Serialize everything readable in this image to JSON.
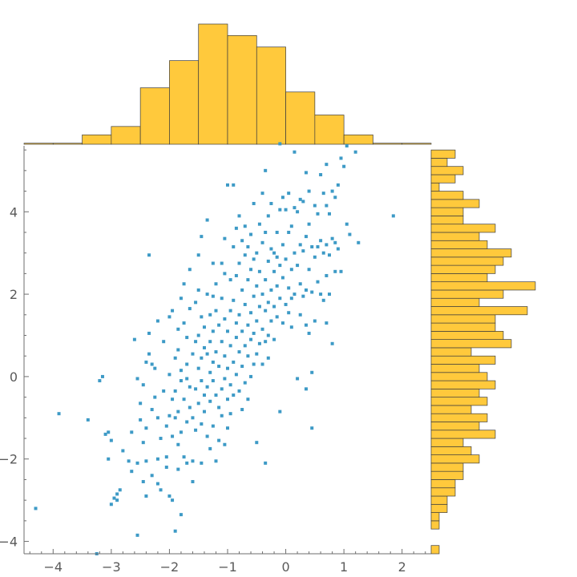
{
  "chart_data": {
    "type": "scatter",
    "title": "",
    "xlabel": "",
    "ylabel": "",
    "xlim": [
      -4.5,
      2.5
    ],
    "ylim": [
      -4.3,
      5.6
    ],
    "x_ticks": [
      -4,
      -3,
      -2,
      -1,
      0,
      1,
      2
    ],
    "y_ticks": [
      -4,
      -2,
      0,
      2,
      4
    ],
    "grid": false,
    "colors": {
      "points": "#3d9ac6",
      "histogram": "#ffc93c",
      "histogram_edge": "#3c3c3c",
      "axis": "#6e6e6e"
    },
    "points": [
      [
        -4.3,
        -3.2
      ],
      [
        -3.9,
        -0.9
      ],
      [
        -3.4,
        -1.05
      ],
      [
        -3.25,
        -4.3
      ],
      [
        -3.2,
        -0.1
      ],
      [
        -3.15,
        0.0
      ],
      [
        -3.1,
        -1.4
      ],
      [
        -3.05,
        -1.35
      ],
      [
        -3.05,
        -2.0
      ],
      [
        -3.0,
        -1.55
      ],
      [
        -3.0,
        -3.1
      ],
      [
        -2.95,
        -2.95
      ],
      [
        -2.9,
        -2.85
      ],
      [
        -2.9,
        -3.0
      ],
      [
        -2.85,
        -2.75
      ],
      [
        -2.8,
        -1.8
      ],
      [
        -2.7,
        -2.05
      ],
      [
        -2.65,
        -1.35
      ],
      [
        -2.65,
        -2.3
      ],
      [
        -2.6,
        0.9
      ],
      [
        -2.55,
        -0.05
      ],
      [
        -2.55,
        -3.85
      ],
      [
        -2.55,
        -2.1
      ],
      [
        -2.5,
        -1.05
      ],
      [
        -2.5,
        -0.65
      ],
      [
        -2.45,
        -0.2
      ],
      [
        -2.45,
        -1.6
      ],
      [
        -2.45,
        -2.55
      ],
      [
        -2.4,
        -2.05
      ],
      [
        -2.4,
        0.35
      ],
      [
        -2.4,
        -1.25
      ],
      [
        -2.4,
        -2.9
      ],
      [
        -2.35,
        0.55
      ],
      [
        -2.35,
        1.05
      ],
      [
        -2.35,
        2.95
      ],
      [
        -2.3,
        -0.8
      ],
      [
        -2.3,
        -2.4
      ],
      [
        -2.3,
        0.3
      ],
      [
        -2.25,
        0.2
      ],
      [
        -2.25,
        -0.5
      ],
      [
        -2.2,
        -1.0
      ],
      [
        -2.2,
        -2.0
      ],
      [
        -2.2,
        -2.6
      ],
      [
        -2.2,
        1.35
      ],
      [
        -2.15,
        -1.5
      ],
      [
        -2.15,
        -2.75
      ],
      [
        -2.1,
        0.85
      ],
      [
        -2.1,
        -0.35
      ],
      [
        -2.05,
        -1.2
      ],
      [
        -2.05,
        -2.2
      ],
      [
        -2.05,
        -1.95
      ],
      [
        -2.0,
        1.45
      ],
      [
        -2.0,
        0.05
      ],
      [
        -2.0,
        -0.95
      ],
      [
        -2.0,
        -2.9
      ],
      [
        -1.95,
        1.6
      ],
      [
        -1.95,
        -0.55
      ],
      [
        -1.95,
        -1.45
      ],
      [
        -1.95,
        -3.0
      ],
      [
        -1.9,
        0.45
      ],
      [
        -1.9,
        -0.35
      ],
      [
        -1.9,
        -1.0
      ],
      [
        -1.9,
        -3.75
      ],
      [
        -1.85,
        1.15
      ],
      [
        -1.85,
        0.65
      ],
      [
        -1.85,
        -0.85
      ],
      [
        -1.85,
        -1.65
      ],
      [
        -1.85,
        -2.25
      ],
      [
        -1.8,
        0.15
      ],
      [
        -1.8,
        1.9
      ],
      [
        -1.8,
        -0.1
      ],
      [
        -1.8,
        -1.35
      ],
      [
        -1.8,
        -3.35
      ],
      [
        -1.75,
        1.3
      ],
      [
        -1.75,
        2.25
      ],
      [
        -1.75,
        -0.55
      ],
      [
        -1.75,
        -1.95
      ],
      [
        -1.7,
        0.3
      ],
      [
        -1.7,
        0.95
      ],
      [
        -1.7,
        -0.05
      ],
      [
        -1.7,
        -1.1
      ],
      [
        -1.7,
        -2.1
      ],
      [
        -1.65,
        2.6
      ],
      [
        -1.65,
        1.65
      ],
      [
        -1.65,
        -0.25
      ],
      [
        -1.65,
        -0.75
      ],
      [
        -1.6,
        -1.0
      ],
      [
        -1.6,
        0.55
      ],
      [
        -1.6,
        -2.05
      ],
      [
        -1.6,
        -2.55
      ],
      [
        -1.55,
        1.8
      ],
      [
        -1.55,
        0.85
      ],
      [
        -1.55,
        -0.3
      ],
      [
        -1.55,
        -1.3
      ],
      [
        -1.5,
        2.95
      ],
      [
        -1.5,
        2.1
      ],
      [
        -1.5,
        0.2
      ],
      [
        -1.5,
        -0.65
      ],
      [
        -1.5,
        1.0
      ],
      [
        -1.45,
        3.4
      ],
      [
        -1.45,
        0.45
      ],
      [
        -1.45,
        1.45
      ],
      [
        -1.45,
        -0.1
      ],
      [
        -1.45,
        -1.15
      ],
      [
        -1.45,
        -2.1
      ],
      [
        -1.4,
        1.2
      ],
      [
        -1.4,
        0.7
      ],
      [
        -1.4,
        -0.45
      ],
      [
        -1.4,
        -0.85
      ],
      [
        -1.35,
        3.8
      ],
      [
        -1.35,
        2.0
      ],
      [
        -1.35,
        0.55
      ],
      [
        -1.35,
        -0.25
      ],
      [
        -1.35,
        -1.45
      ],
      [
        -1.3,
        1.5
      ],
      [
        -1.3,
        0.85
      ],
      [
        -1.3,
        0.1
      ],
      [
        -1.3,
        -1.75
      ],
      [
        -1.3,
        -0.6
      ],
      [
        -1.25,
        2.75
      ],
      [
        -1.25,
        1.95
      ],
      [
        -1.25,
        1.1
      ],
      [
        -1.25,
        0.35
      ],
      [
        -1.25,
        -0.1
      ],
      [
        -1.25,
        -1.2
      ],
      [
        -1.2,
        2.25
      ],
      [
        -1.2,
        1.6
      ],
      [
        -1.2,
        0.6
      ],
      [
        -1.2,
        -0.45
      ],
      [
        -1.2,
        -2.05
      ],
      [
        -1.15,
        1.25
      ],
      [
        -1.15,
        0.25
      ],
      [
        -1.15,
        -0.75
      ],
      [
        -1.15,
        -1.55
      ],
      [
        -1.1,
        2.75
      ],
      [
        -1.1,
        1.9
      ],
      [
        -1.1,
        0.85
      ],
      [
        -1.1,
        -0.3
      ],
      [
        -1.1,
        -0.95
      ],
      [
        -1.05,
        3.35
      ],
      [
        -1.05,
        2.5
      ],
      [
        -1.05,
        1.4
      ],
      [
        -1.05,
        0.5
      ],
      [
        -1.05,
        -0.05
      ],
      [
        -1.05,
        -1.65
      ],
      [
        -1.0,
        4.65
      ],
      [
        -1.0,
        1.1
      ],
      [
        -1.0,
        0.2
      ],
      [
        -1.0,
        -0.55
      ],
      [
        -1.0,
        -1.25
      ],
      [
        -0.95,
        2.35
      ],
      [
        -0.95,
        1.6
      ],
      [
        -0.95,
        0.75
      ],
      [
        -0.95,
        -0.2
      ],
      [
        -0.95,
        -0.9
      ],
      [
        -0.9,
        4.65
      ],
      [
        -0.9,
        3.15
      ],
      [
        -0.9,
        1.85
      ],
      [
        -0.9,
        0.35
      ],
      [
        -0.9,
        -0.45
      ],
      [
        -0.85,
        3.6
      ],
      [
        -0.85,
        2.45
      ],
      [
        -0.85,
        1.3
      ],
      [
        -0.85,
        0.95
      ],
      [
        -0.85,
        0.05
      ],
      [
        -0.8,
        3.9
      ],
      [
        -0.8,
        2.75
      ],
      [
        -0.8,
        1.5
      ],
      [
        -0.8,
        0.6
      ],
      [
        -0.8,
        -0.35
      ],
      [
        -0.75,
        3.3
      ],
      [
        -0.75,
        2.1
      ],
      [
        -0.75,
        1.1
      ],
      [
        -0.75,
        0.25
      ],
      [
        -0.75,
        -0.8
      ],
      [
        -0.7,
        3.65
      ],
      [
        -0.7,
        2.95
      ],
      [
        -0.7,
        1.75
      ],
      [
        -0.7,
        0.75
      ],
      [
        -0.7,
        -0.15
      ],
      [
        -0.65,
        3.15
      ],
      [
        -0.65,
        2.35
      ],
      [
        -0.65,
        1.25
      ],
      [
        -0.65,
        0.5
      ],
      [
        -0.65,
        -0.55
      ],
      [
        -0.6,
        3.45
      ],
      [
        -0.6,
        2.6
      ],
      [
        -0.6,
        1.55
      ],
      [
        -0.6,
        0.9
      ],
      [
        -0.6,
        0.0
      ],
      [
        -0.55,
        4.2
      ],
      [
        -0.55,
        2.85
      ],
      [
        -0.55,
        1.95
      ],
      [
        -0.55,
        1.05
      ],
      [
        -0.55,
        0.3
      ],
      [
        -0.5,
        3.0
      ],
      [
        -0.5,
        2.2
      ],
      [
        -0.5,
        1.35
      ],
      [
        -0.5,
        0.55
      ],
      [
        -0.5,
        -1.6
      ],
      [
        -0.45,
        3.7
      ],
      [
        -0.45,
        2.55
      ],
      [
        -0.45,
        1.7
      ],
      [
        -0.45,
        0.8
      ],
      [
        -0.4,
        4.45
      ],
      [
        -0.4,
        3.25
      ],
      [
        -0.4,
        2.0
      ],
      [
        -0.4,
        1.15
      ],
      [
        -0.4,
        0.3
      ],
      [
        -0.35,
        5.0
      ],
      [
        -0.35,
        3.5
      ],
      [
        -0.35,
        2.35
      ],
      [
        -0.35,
        1.6
      ],
      [
        -0.35,
        0.85
      ],
      [
        -0.35,
        -2.1
      ],
      [
        -0.3,
        3.9
      ],
      [
        -0.3,
        2.8
      ],
      [
        -0.3,
        1.8
      ],
      [
        -0.3,
        1.0
      ],
      [
        -0.3,
        0.45
      ],
      [
        -0.25,
        4.2
      ],
      [
        -0.25,
        3.1
      ],
      [
        -0.25,
        2.1
      ],
      [
        -0.25,
        1.35
      ],
      [
        -0.2,
        3.0
      ],
      [
        -0.2,
        2.55
      ],
      [
        -0.2,
        1.7
      ],
      [
        -0.2,
        0.9
      ],
      [
        -0.15,
        3.5
      ],
      [
        -0.15,
        2.9
      ],
      [
        -0.15,
        2.2
      ],
      [
        -0.15,
        1.45
      ],
      [
        -0.1,
        5.65
      ],
      [
        -0.1,
        4.05
      ],
      [
        -0.1,
        2.7
      ],
      [
        -0.1,
        1.9
      ],
      [
        -0.1,
        -0.85
      ],
      [
        -0.05,
        4.35
      ],
      [
        -0.05,
        3.2
      ],
      [
        -0.05,
        2.4
      ],
      [
        -0.05,
        1.3
      ],
      [
        0.0,
        4.05
      ],
      [
        0.0,
        2.85
      ],
      [
        0.0,
        1.75
      ],
      [
        0.05,
        4.45
      ],
      [
        0.05,
        3.5
      ],
      [
        0.05,
        2.15
      ],
      [
        0.05,
        1.55
      ],
      [
        0.1,
        3.65
      ],
      [
        0.1,
        2.6
      ],
      [
        0.1,
        1.9
      ],
      [
        0.1,
        1.2
      ],
      [
        0.15,
        5.45
      ],
      [
        0.15,
        4.1
      ],
      [
        0.15,
        3.0
      ],
      [
        0.15,
        2.0
      ],
      [
        0.2,
        4.0
      ],
      [
        0.2,
        2.7
      ],
      [
        0.2,
        -0.05
      ],
      [
        0.25,
        4.3
      ],
      [
        0.25,
        3.2
      ],
      [
        0.25,
        2.25
      ],
      [
        0.25,
        1.5
      ],
      [
        0.3,
        4.25
      ],
      [
        0.3,
        3.05
      ],
      [
        0.3,
        1.95
      ],
      [
        0.35,
        4.95
      ],
      [
        0.35,
        3.4
      ],
      [
        0.35,
        2.1
      ],
      [
        0.35,
        1.25
      ],
      [
        0.35,
        -0.3
      ],
      [
        0.4,
        4.5
      ],
      [
        0.4,
        3.7
      ],
      [
        0.4,
        2.6
      ],
      [
        0.4,
        1.05
      ],
      [
        0.45,
        3.15
      ],
      [
        0.45,
        2.05
      ],
      [
        0.45,
        0.1
      ],
      [
        0.5,
        4.15
      ],
      [
        0.5,
        2.9
      ],
      [
        0.5,
        1.35
      ],
      [
        0.45,
        -1.25
      ],
      [
        0.55,
        3.95
      ],
      [
        0.55,
        3.15
      ],
      [
        0.55,
        2.3
      ],
      [
        0.6,
        4.9
      ],
      [
        0.6,
        3.3
      ],
      [
        0.6,
        2.0
      ],
      [
        0.65,
        4.45
      ],
      [
        0.65,
        3.0
      ],
      [
        0.65,
        1.85
      ],
      [
        0.7,
        5.15
      ],
      [
        0.7,
        4.15
      ],
      [
        0.7,
        3.2
      ],
      [
        0.7,
        2.45
      ],
      [
        0.7,
        1.3
      ],
      [
        0.75,
        3.95
      ],
      [
        0.75,
        2.95
      ],
      [
        0.75,
        2.0
      ],
      [
        0.8,
        4.5
      ],
      [
        0.8,
        3.35
      ],
      [
        0.8,
        0.8
      ],
      [
        0.85,
        4.35
      ],
      [
        0.85,
        3.25
      ],
      [
        0.85,
        2.55
      ],
      [
        0.9,
        4.65
      ],
      [
        0.9,
        3.1
      ],
      [
        0.95,
        5.3
      ],
      [
        0.95,
        2.55
      ],
      [
        1.0,
        5.1
      ],
      [
        1.05,
        5.6
      ],
      [
        1.05,
        3.7
      ],
      [
        1.1,
        3.45
      ],
      [
        1.2,
        5.45
      ],
      [
        1.25,
        3.25
      ],
      [
        1.85,
        3.9
      ]
    ],
    "top_histogram": {
      "bin_edges": [
        -4.5,
        -4.0,
        -3.5,
        -3.0,
        -2.5,
        -2.0,
        -1.5,
        -1.0,
        -0.5,
        0.0,
        0.5,
        1.0,
        1.5,
        2.0,
        2.5
      ],
      "values": [
        1,
        1,
        9,
        17,
        54,
        80,
        115,
        104,
        93,
        50,
        28,
        9,
        1,
        1
      ]
    },
    "right_histogram": {
      "bin_edges": [
        -4.3,
        -4.1,
        -3.9,
        -3.7,
        -3.5,
        -3.3,
        -3.1,
        -2.9,
        -2.7,
        -2.5,
        -2.3,
        -2.1,
        -1.9,
        -1.7,
        -1.5,
        -1.3,
        -1.1,
        -0.9,
        -0.7,
        -0.5,
        -0.3,
        -0.1,
        0.1,
        0.3,
        0.5,
        0.7,
        0.9,
        1.1,
        1.3,
        1.5,
        1.7,
        1.9,
        2.1,
        2.3,
        2.5,
        2.7,
        2.9,
        3.1,
        3.3,
        3.5,
        3.7,
        3.9,
        4.1,
        4.3,
        4.5,
        4.7,
        4.9,
        5.1,
        5.3,
        5.5
      ],
      "values": [
        1,
        0,
        0,
        1,
        1,
        2,
        2,
        3,
        3,
        4,
        4,
        6,
        5,
        4,
        8,
        6,
        7,
        5,
        7,
        6,
        8,
        7,
        6,
        8,
        5,
        10,
        9,
        8,
        8,
        12,
        6,
        9,
        13,
        7,
        8,
        9,
        10,
        7,
        6,
        8,
        4,
        4,
        6,
        4,
        1,
        3,
        4,
        2,
        3
      ]
    }
  }
}
